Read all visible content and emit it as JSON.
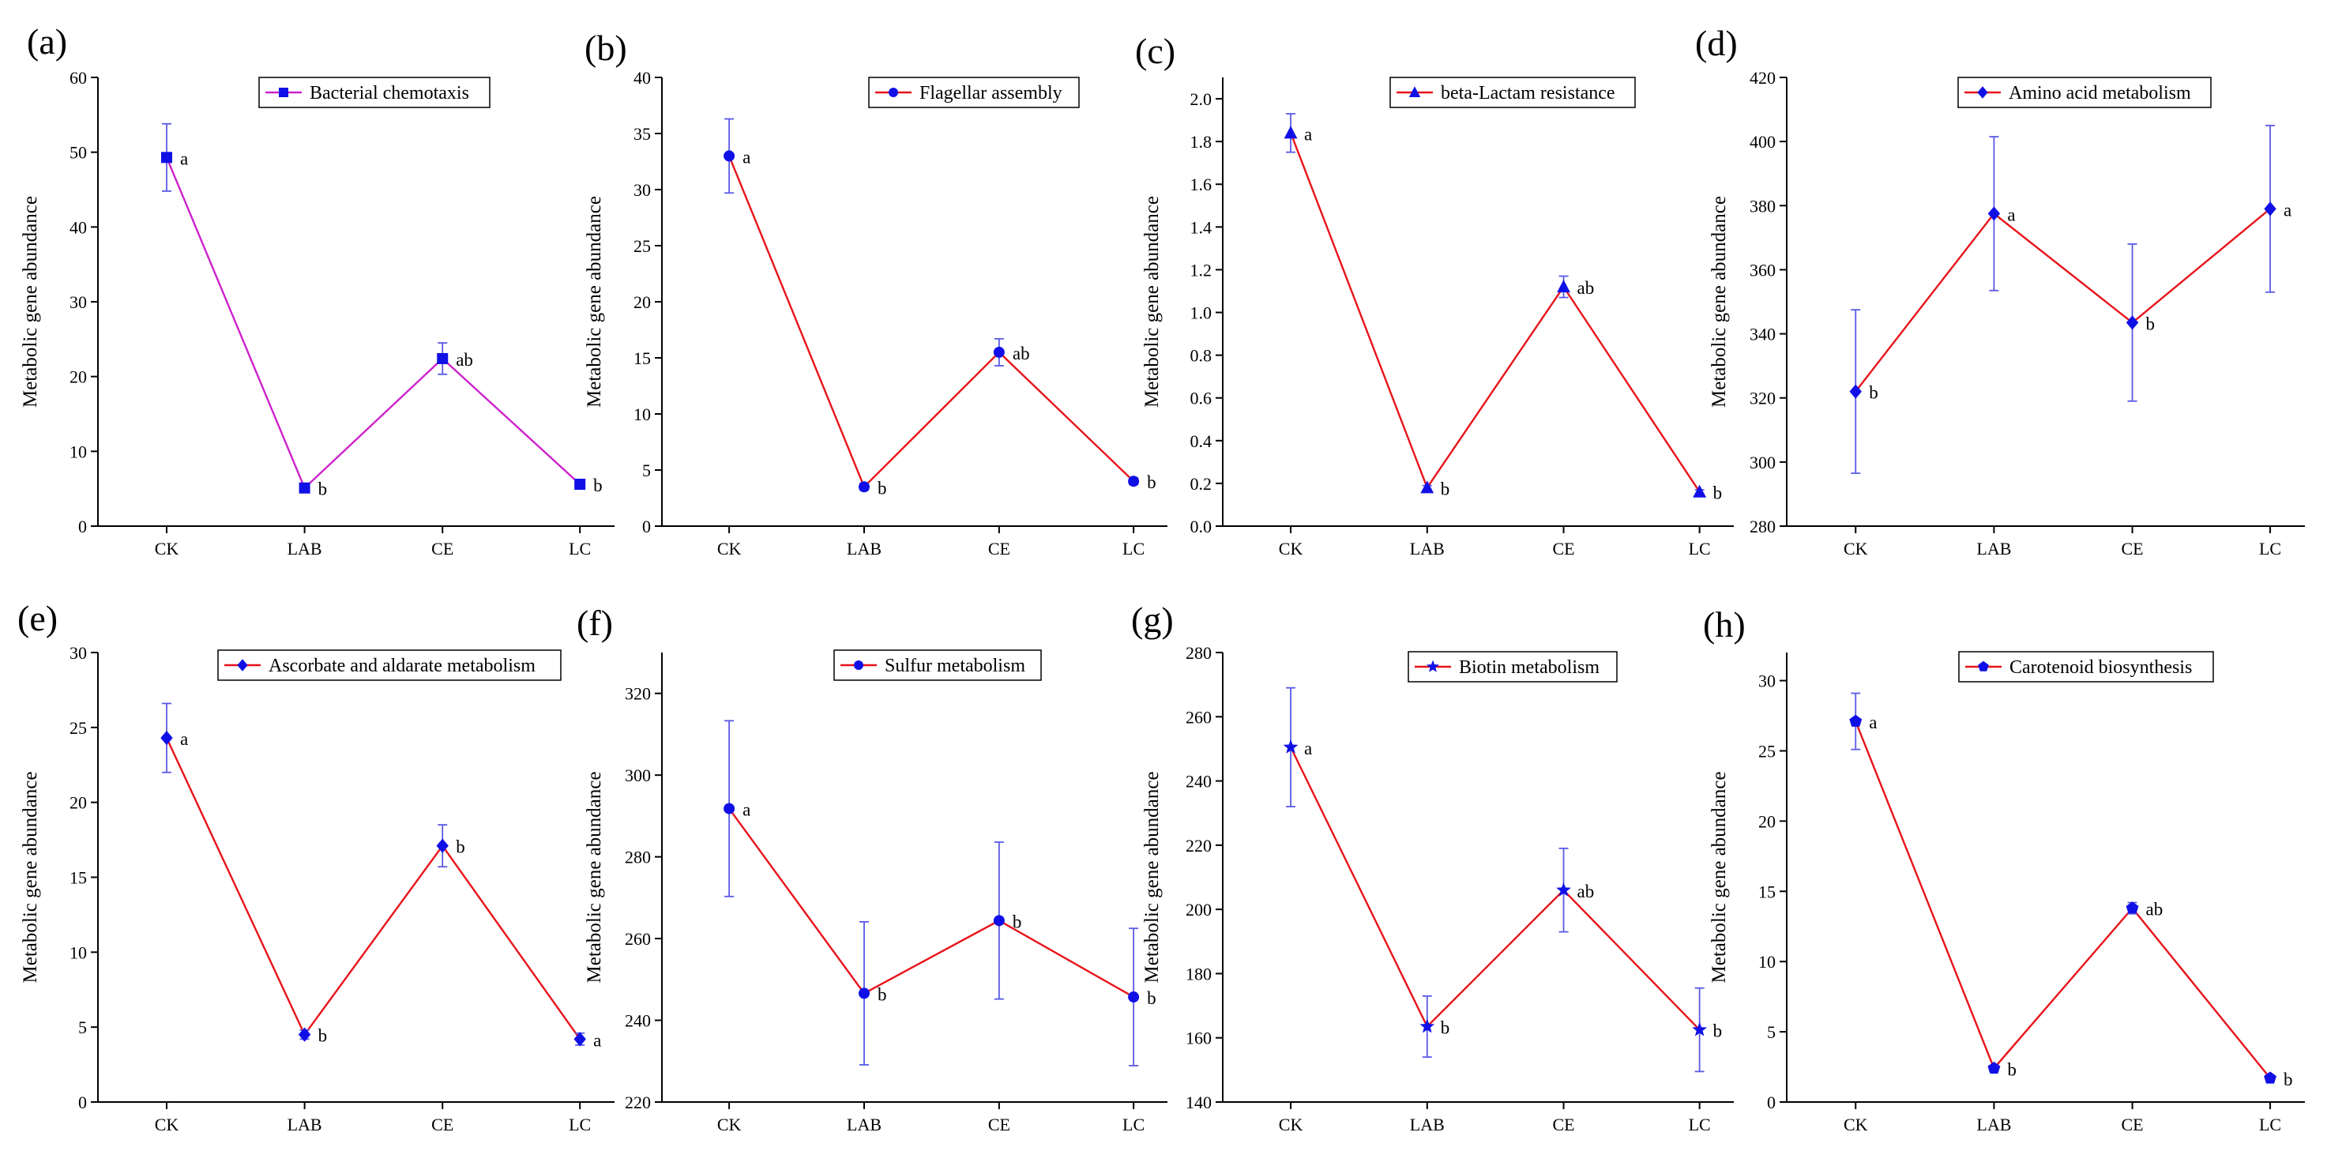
{
  "figure": {
    "description": "Eight line plots of metabolic gene abundance across four treatments"
  },
  "colors": {
    "line": "#e8131a",
    "line_magenta": "#cc00cc",
    "marker": "#1010e6",
    "errorbar": "#5a5ae6",
    "axis": "#000000"
  },
  "chart_data": [
    {
      "type": "line",
      "panel_label": "(a)",
      "title": "",
      "legend": "Bacterial chemotaxis",
      "marker": "square",
      "line_color": "#cc22cc",
      "xlabel": "",
      "ylabel": "Metabolic gene abundance",
      "categories": [
        "CK",
        "LAB",
        "CE",
        "LC"
      ],
      "values": [
        49.3,
        5.1,
        22.4,
        5.6
      ],
      "errors": [
        4.5,
        0.5,
        2.1,
        0.4
      ],
      "significance": [
        "a",
        "b",
        "ab",
        "b"
      ],
      "ylim": [
        0,
        60
      ],
      "yticks": [
        0,
        10,
        20,
        30,
        40,
        50,
        60
      ],
      "ytick_labels": [
        "0",
        "10",
        "20",
        "30",
        "40",
        "50",
        "60"
      ]
    },
    {
      "type": "line",
      "panel_label": "(b)",
      "title": "",
      "legend": "Flagellar assembly",
      "marker": "circle",
      "line_color": "#e8131a",
      "xlabel": "",
      "ylabel": "Metabolic gene abundance",
      "categories": [
        "CK",
        "LAB",
        "CE",
        "LC"
      ],
      "values": [
        33.0,
        3.5,
        15.5,
        4.0
      ],
      "errors": [
        3.3,
        0.3,
        1.2,
        0.3
      ],
      "significance": [
        "a",
        "b",
        "ab",
        "b"
      ],
      "ylim": [
        0,
        40
      ],
      "yticks": [
        0,
        5,
        10,
        15,
        20,
        25,
        30,
        35,
        40
      ],
      "ytick_labels": [
        "0",
        "5",
        "10",
        "15",
        "20",
        "25",
        "30",
        "35",
        "40"
      ]
    },
    {
      "type": "line",
      "panel_label": "(c)",
      "title": "",
      "legend": "beta-Lactam resistance",
      "marker": "triangle",
      "line_color": "#e8131a",
      "xlabel": "",
      "ylabel": "Metabolic gene abundance",
      "categories": [
        "CK",
        "LAB",
        "CE",
        "LC"
      ],
      "values": [
        1.84,
        0.18,
        1.12,
        0.16
      ],
      "errors": [
        0.09,
        0.01,
        0.05,
        0.01
      ],
      "significance": [
        "a",
        "b",
        "ab",
        "b"
      ],
      "ylim": [
        0,
        2.1
      ],
      "yticks": [
        0,
        0.2,
        0.4,
        0.6,
        0.8,
        1.0,
        1.2,
        1.4,
        1.6,
        1.8,
        2.0
      ],
      "ytick_labels": [
        "0.0",
        "0.2",
        "0.4",
        "0.6",
        "0.8",
        "1.0",
        "1.2",
        "1.4",
        "1.6",
        "1.8",
        "2.0"
      ]
    },
    {
      "type": "line",
      "panel_label": "(d)",
      "title": "",
      "legend": "Amino acid metabolism",
      "marker": "diamond",
      "line_color": "#e8131a",
      "xlabel": "",
      "ylabel": "Metabolic gene abundance",
      "categories": [
        "CK",
        "LAB",
        "CE",
        "LC"
      ],
      "values": [
        322,
        377.5,
        343.5,
        379
      ],
      "errors": [
        25.5,
        24,
        24.5,
        26
      ],
      "significance": [
        "b",
        "a",
        "b",
        "a"
      ],
      "ylim": [
        280,
        420
      ],
      "yticks": [
        280,
        300,
        320,
        340,
        360,
        380,
        400,
        420
      ],
      "ytick_labels": [
        "280",
        "300",
        "320",
        "340",
        "360",
        "380",
        "400",
        "420"
      ]
    },
    {
      "type": "line",
      "panel_label": "(e)",
      "title": "",
      "legend": "Ascorbate and aldarate metabolism",
      "marker": "diamond",
      "line_color": "#e8131a",
      "xlabel": "",
      "ylabel": "Metabolic gene abundance",
      "categories": [
        "CK",
        "LAB",
        "CE",
        "LC"
      ],
      "values": [
        24.3,
        4.5,
        17.1,
        4.2
      ],
      "errors": [
        2.3,
        0.3,
        1.4,
        0.4
      ],
      "significance": [
        "a",
        "b",
        "b",
        "a"
      ],
      "ylim": [
        0,
        30
      ],
      "yticks": [
        0,
        5,
        10,
        15,
        20,
        25,
        30
      ],
      "ytick_labels": [
        "0",
        "5",
        "10",
        "15",
        "20",
        "25",
        "30"
      ]
    },
    {
      "type": "line",
      "panel_label": "(f)",
      "title": "",
      "legend": "Sulfur metabolism",
      "marker": "circle",
      "line_color": "#e8131a",
      "xlabel": "",
      "ylabel": "Metabolic gene abundance",
      "categories": [
        "CK",
        "LAB",
        "CE",
        "LC"
      ],
      "values": [
        291.8,
        246.6,
        264.4,
        245.7
      ],
      "errors": [
        21.5,
        17.5,
        19.2,
        16.8
      ],
      "significance": [
        "a",
        "b",
        "b",
        "b"
      ],
      "ylim": [
        220,
        330
      ],
      "yticks": [
        220,
        240,
        260,
        280,
        300,
        320
      ],
      "ytick_labels": [
        "220",
        "240",
        "260",
        "280",
        "300",
        "320"
      ]
    },
    {
      "type": "line",
      "panel_label": "(g)",
      "title": "",
      "legend": "Biotin metabolism",
      "marker": "star",
      "line_color": "#e8131a",
      "xlabel": "",
      "ylabel": "Metabolic gene abundance",
      "categories": [
        "CK",
        "LAB",
        "CE",
        "LC"
      ],
      "values": [
        250.5,
        163.5,
        206,
        162.5
      ],
      "errors": [
        18.5,
        9.5,
        13,
        13
      ],
      "significance": [
        "a",
        "b",
        "ab",
        "b"
      ],
      "ylim": [
        140,
        280
      ],
      "yticks": [
        140,
        160,
        180,
        200,
        220,
        240,
        260,
        280
      ],
      "ytick_labels": [
        "140",
        "160",
        "180",
        "200",
        "220",
        "240",
        "260",
        "280"
      ]
    },
    {
      "type": "line",
      "panel_label": "(h)",
      "title": "",
      "legend": "Carotenoid biosynthesis",
      "marker": "pentagon",
      "line_color": "#e8131a",
      "xlabel": "",
      "ylabel": "Metabolic gene abundance",
      "categories": [
        "CK",
        "LAB",
        "CE",
        "LC"
      ],
      "values": [
        27.1,
        2.4,
        13.8,
        1.7
      ],
      "errors": [
        2.0,
        0.2,
        0.4,
        0.2
      ],
      "significance": [
        "a",
        "b",
        "ab",
        "b"
      ],
      "ylim": [
        0,
        32
      ],
      "yticks": [
        0,
        5,
        10,
        15,
        20,
        25,
        30
      ],
      "ytick_labels": [
        "0",
        "5",
        "10",
        "15",
        "20",
        "25",
        "30"
      ]
    }
  ]
}
